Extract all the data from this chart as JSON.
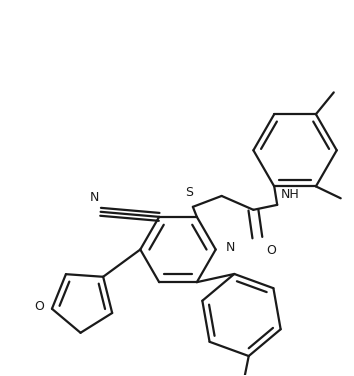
{
  "bg_color": "#ffffff",
  "line_color": "#1a1a1a",
  "line_width": 1.6,
  "figsize": [
    3.54,
    3.76
  ],
  "dpi": 100,
  "xlim": [
    0,
    354
  ],
  "ylim": [
    0,
    376
  ]
}
